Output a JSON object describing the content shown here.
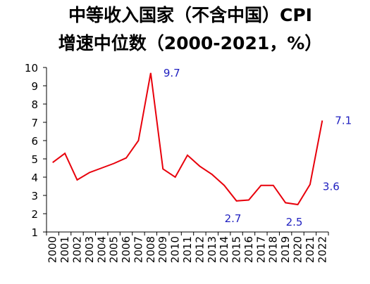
{
  "chart_data": {
    "type": "line",
    "title": [
      "中等收入国家（不含中国）CPI",
      "增速中位数（2000-2021，%）"
    ],
    "categories": [
      "2000",
      "2001",
      "2002",
      "2003",
      "2004",
      "2005",
      "2006",
      "2007",
      "2008",
      "2009",
      "2010",
      "2011",
      "2012",
      "2013",
      "2014",
      "2015",
      "2016",
      "2017",
      "2018",
      "2019",
      "2020",
      "2021",
      "2022"
    ],
    "values": [
      4.8,
      5.3,
      3.85,
      4.25,
      4.5,
      4.75,
      5.05,
      6.0,
      9.7,
      4.45,
      4.0,
      5.2,
      4.6,
      4.15,
      3.55,
      2.7,
      2.75,
      3.55,
      3.55,
      2.6,
      2.5,
      3.6,
      7.1
    ],
    "value_labels": [
      null,
      null,
      null,
      null,
      null,
      null,
      null,
      null,
      "9.7",
      null,
      null,
      null,
      null,
      null,
      null,
      "2.7",
      null,
      null,
      null,
      null,
      "2.5",
      "3.6",
      "7.1"
    ],
    "color": "#e8000b",
    "ylim": [
      1,
      10
    ],
    "yticks": [
      1,
      2,
      3,
      4,
      5,
      6,
      7,
      8,
      9,
      10
    ],
    "grid": false
  }
}
